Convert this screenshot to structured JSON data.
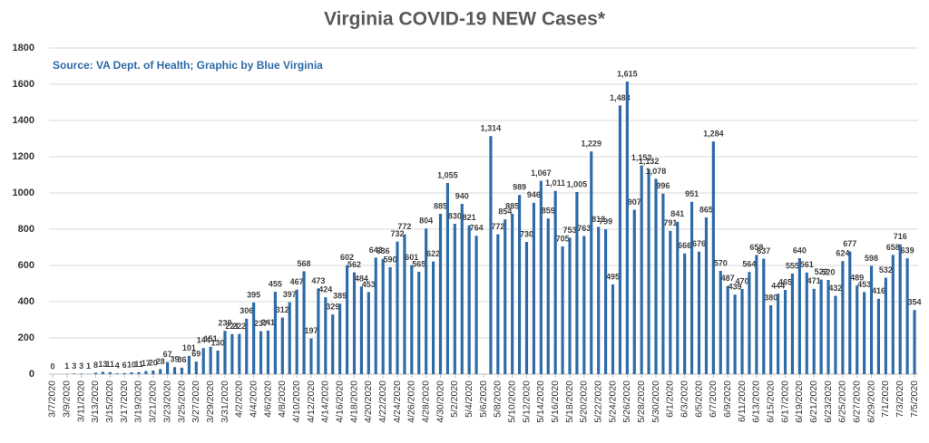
{
  "chart_data": {
    "type": "bar",
    "title": "Virginia COVID-19 NEW Cases*",
    "subtitle": "Source: VA Dept. of Health; Graphic by Blue Virginia",
    "color": "#2e6ba8",
    "grid": true,
    "ylim": [
      0,
      1800
    ],
    "yticks": [
      0,
      200,
      400,
      600,
      800,
      1000,
      1200,
      1400,
      1600,
      1800
    ],
    "categories": [
      "3/7/2020",
      null,
      "3/9/2020",
      null,
      "3/11/2020",
      null,
      "3/13/2020",
      null,
      "3/15/2020",
      null,
      "3/17/2020",
      null,
      "3/19/2020",
      null,
      "3/21/2020",
      null,
      "3/23/2020",
      null,
      "3/25/2020",
      null,
      "3/27/2020",
      null,
      "3/29/2020",
      null,
      "3/31/2020",
      null,
      "4/2/2020",
      null,
      "4/4/2020",
      null,
      "4/6/2020",
      null,
      "4/8/2020",
      null,
      "4/10/2020",
      null,
      "4/12/2020",
      null,
      "4/14/2020",
      null,
      "4/16/2020",
      null,
      "4/18/2020",
      null,
      "4/20/2020",
      null,
      "4/22/2020",
      null,
      "4/24/2020",
      null,
      "4/26/2020",
      null,
      "4/28/2020",
      null,
      "4/30/2020",
      null,
      "5/2/2020",
      null,
      "5/4/2020",
      null,
      "5/6/2020",
      null,
      "5/8/2020",
      null,
      "5/10/2020",
      null,
      "5/12/2020",
      null,
      "5/14/2020",
      null,
      "5/16/2020",
      null,
      "5/18/2020",
      null,
      "5/20/2020",
      null,
      "5/22/2020",
      null,
      "5/24/2020",
      null,
      "5/26/2020",
      null,
      "5/28/2020",
      null,
      "5/30/2020",
      null,
      "6/1/2020",
      null,
      "6/3/2020",
      null,
      "6/5/2020",
      null,
      "6/7/2020",
      null,
      "6/9/2020",
      null,
      "6/11/2020",
      null,
      "6/13/2020",
      null,
      "6/15/2020",
      null,
      "6/17/2020",
      null,
      "6/19/2020",
      null,
      "6/21/2020",
      null,
      "6/23/2020",
      null,
      "6/25/2020",
      null,
      "6/27/2020",
      null,
      "6/29/2020",
      null,
      "7/1/2020",
      null,
      "7/3/2020",
      null,
      "7/5/2020"
    ],
    "values": [
      0,
      null,
      1,
      3,
      3,
      1,
      8,
      13,
      11,
      4,
      6,
      10,
      11,
      17,
      20,
      28,
      67,
      39,
      36,
      101,
      69,
      144,
      151,
      130,
      239,
      221,
      222,
      306,
      395,
      237,
      241,
      455,
      312,
      397,
      467,
      568,
      197,
      473,
      424,
      329,
      389,
      602,
      562,
      484,
      453,
      643,
      636,
      590,
      732,
      772,
      601,
      565,
      804,
      622,
      885,
      1055,
      830,
      940,
      821,
      764,
      null,
      1314,
      772,
      854,
      885,
      989,
      730,
      946,
      1067,
      859,
      1011,
      705,
      753,
      1005,
      763,
      1229,
      813,
      799,
      495,
      1483,
      1615,
      907,
      1152,
      1132,
      1078,
      996,
      791,
      841,
      666,
      951,
      676,
      865,
      1284,
      570,
      487,
      439,
      470,
      564,
      658,
      637,
      380,
      444,
      465,
      555,
      640,
      561,
      471,
      522,
      520,
      432,
      624,
      677,
      489,
      453,
      598,
      416,
      532,
      658,
      716,
      639,
      354
    ],
    "value_labels": [
      "0",
      null,
      "1",
      "3",
      "3",
      "1",
      "8",
      "13",
      "11",
      "4",
      "6",
      "10",
      "11",
      "17",
      "20",
      "28",
      "67",
      "39",
      "36",
      "101",
      "69",
      "144",
      "151",
      "130",
      "239",
      "221",
      "222",
      "306",
      "395",
      "237",
      "241",
      "455",
      "312",
      "397",
      "467",
      "568",
      "197",
      "473",
      "424",
      "329",
      "389",
      "602",
      "562",
      "484",
      "453",
      "643",
      "636",
      "590",
      "732",
      "772",
      "601",
      "565",
      "804",
      "622",
      "885",
      "1,055",
      "830",
      "940",
      "821",
      "764",
      null,
      "1,314",
      "772",
      "854",
      "885",
      "989",
      "730",
      "946",
      "1,067",
      "859",
      "1,011",
      "705",
      "753",
      "1,005",
      "763",
      "1,229",
      "813",
      "799",
      "495",
      "1,483",
      "1,615",
      "907",
      "1,152",
      "1,132",
      "1,078",
      "996",
      "791",
      "841",
      "666",
      "951",
      "676",
      "865",
      "1,284",
      "570",
      "487",
      "439",
      "470",
      "564",
      "658",
      "637",
      "380",
      "444",
      "465",
      "555",
      "640",
      "561",
      "471",
      "522",
      "520",
      "432",
      "624",
      "677",
      "489",
      "453",
      "598",
      "416",
      "532",
      "658",
      "716",
      "639",
      "354"
    ]
  }
}
